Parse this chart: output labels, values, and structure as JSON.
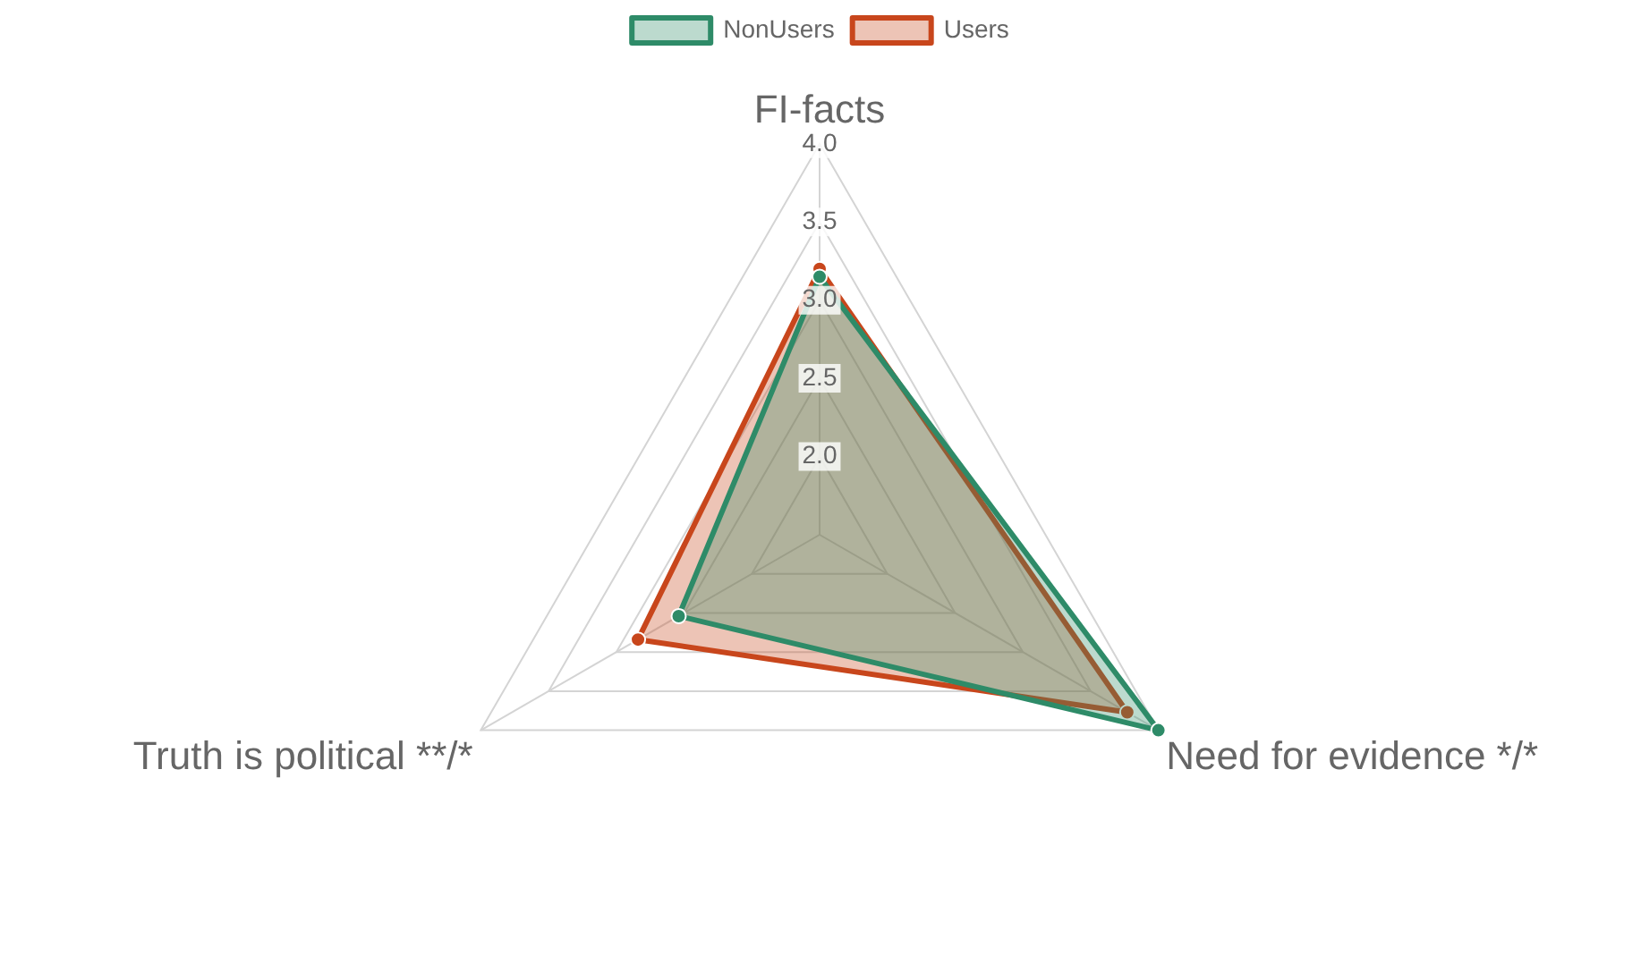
{
  "chart_data": {
    "type": "radar",
    "categories": [
      "FI-facts",
      "Need for evidence */*",
      "Truth is political **/*"
    ],
    "series": [
      {
        "name": "NonUsers",
        "color": "#2e8b68",
        "values": [
          3.15,
          4.0,
          2.54
        ]
      },
      {
        "name": "Users",
        "color": "#c8461c",
        "values": [
          3.2,
          3.77,
          2.84
        ]
      }
    ],
    "ylim": [
      1.5,
      4.0
    ],
    "yticks": [
      {
        "value": 2,
        "label": "2.0"
      },
      {
        "value": 2.5,
        "label": "2.5"
      },
      {
        "value": 3,
        "label": "3.0"
      },
      {
        "value": 3.5,
        "label": "3.5"
      },
      {
        "value": 4,
        "label": "4.0"
      }
    ],
    "grid": true,
    "legend": "top",
    "marker": "circle"
  }
}
